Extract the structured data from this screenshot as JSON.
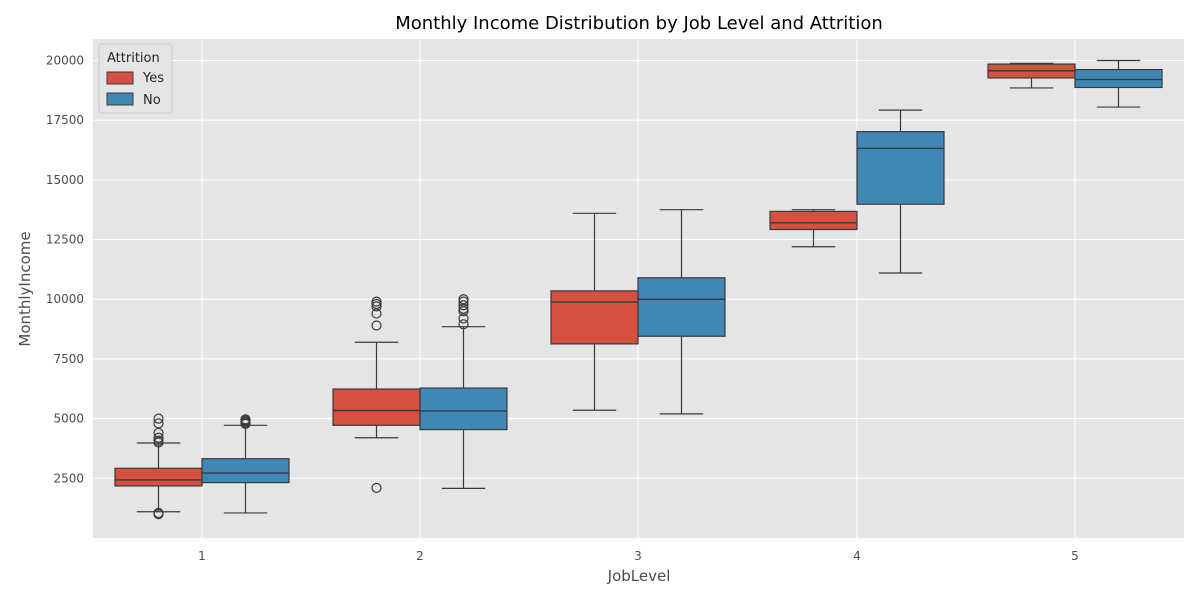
{
  "colors": {
    "plot_bg": "#E5E5E5",
    "grid": "#FFFFFF",
    "line": "#3A3A3A",
    "yes": "#D55040",
    "no": "#3F88B6"
  },
  "chart_data": {
    "type": "box",
    "title": "Monthly Income Distribution by Job Level and Attrition",
    "xlabel": "JobLevel",
    "ylabel": "MonthlyIncome",
    "categories": [
      "1",
      "2",
      "3",
      "4",
      "5"
    ],
    "y_ticks": [
      2500,
      5000,
      7500,
      10000,
      12500,
      15000,
      17500,
      20000
    ],
    "y_tick_labels": [
      "2500",
      "5000",
      "7500",
      "10000",
      "12500",
      "15000",
      "17500",
      "20000"
    ],
    "ylim": [
      0,
      20900
    ],
    "grid": true,
    "legend": {
      "title": "Attrition",
      "placement": "upper-left",
      "entries": [
        "Yes",
        "No"
      ]
    },
    "series": [
      {
        "name": "Yes",
        "color": "#D55040",
        "boxes": [
          {
            "category": "1",
            "whisker_low": 1100,
            "q1": 2180,
            "median": 2430,
            "q3": 2920,
            "whisker_high": 3980,
            "outliers": [
              4000,
              4080,
              4200,
              4400,
              4800,
              5000,
              1050,
              1000
            ]
          },
          {
            "category": "2",
            "whisker_low": 4200,
            "q1": 4720,
            "median": 5340,
            "q3": 6240,
            "whisker_high": 8200,
            "outliers": [
              8900,
              9400,
              9700,
              9800,
              9900,
              2100
            ]
          },
          {
            "category": "3",
            "whisker_low": 5350,
            "q1": 8130,
            "median": 9880,
            "q3": 10350,
            "whisker_high": 13600,
            "outliers": []
          },
          {
            "category": "4",
            "whisker_low": 12200,
            "q1": 12920,
            "median": 13200,
            "q3": 13680,
            "whisker_high": 13750,
            "outliers": []
          },
          {
            "category": "5",
            "whisker_low": 18850,
            "q1": 19270,
            "median": 19570,
            "q3": 19850,
            "whisker_high": 19880,
            "outliers": []
          }
        ]
      },
      {
        "name": "No",
        "color": "#3F88B6",
        "boxes": [
          {
            "category": "1",
            "whisker_low": 1050,
            "q1": 2320,
            "median": 2720,
            "q3": 3320,
            "whisker_high": 4720,
            "outliers": [
              4780,
              4830,
              4880,
              4930,
              4970
            ]
          },
          {
            "category": "2",
            "whisker_low": 2080,
            "q1": 4540,
            "median": 5320,
            "q3": 6280,
            "whisker_high": 8850,
            "outliers": [
              8950,
              9200,
              9500,
              9600,
              9750,
              9900,
              10000
            ]
          },
          {
            "category": "3",
            "whisker_low": 5200,
            "q1": 8450,
            "median": 10000,
            "q3": 10900,
            "whisker_high": 13750,
            "outliers": []
          },
          {
            "category": "4",
            "whisker_low": 11100,
            "q1": 13980,
            "median": 16320,
            "q3": 17020,
            "whisker_high": 17920,
            "outliers": []
          },
          {
            "category": "5",
            "whisker_low": 18050,
            "q1": 18870,
            "median": 19200,
            "q3": 19620,
            "whisker_high": 20000,
            "outliers": []
          }
        ]
      }
    ]
  }
}
